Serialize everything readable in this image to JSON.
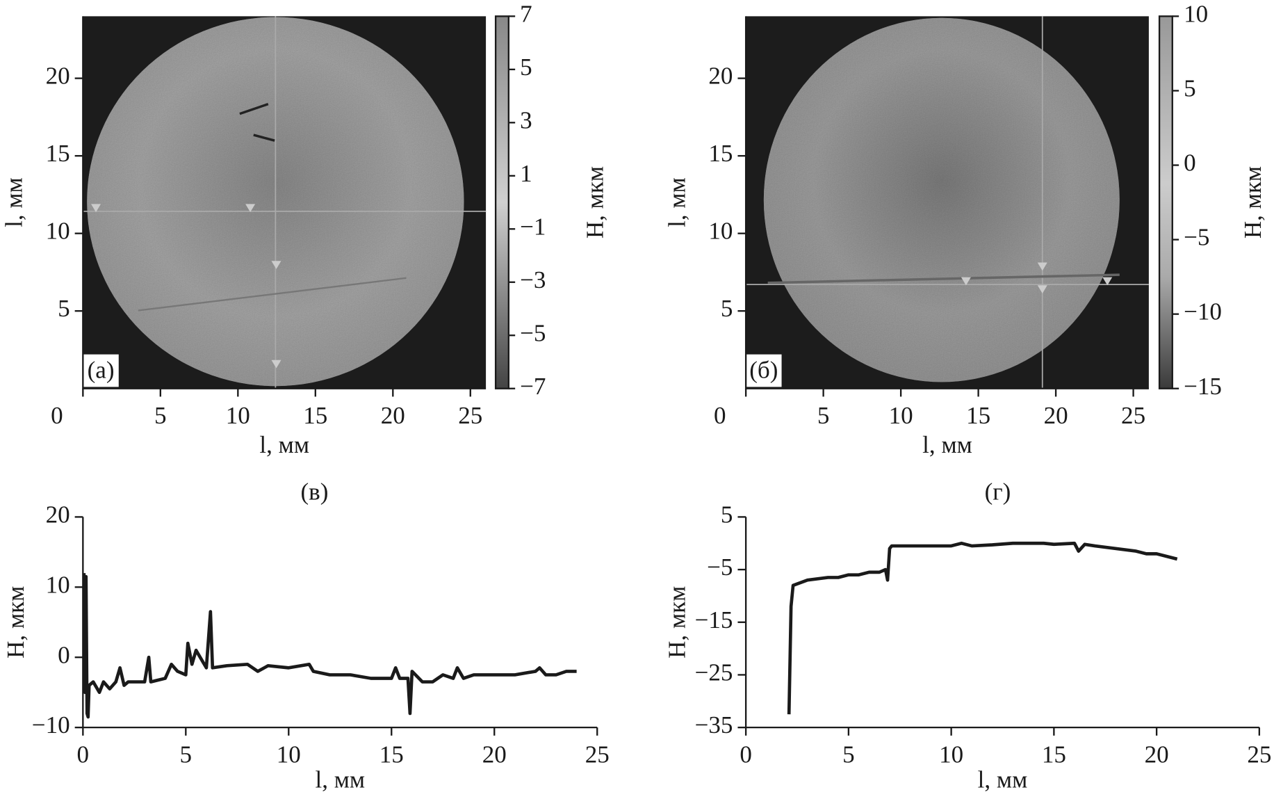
{
  "chart_data": [
    {
      "type": "heatmap",
      "panel_label": "(а)",
      "xlabel": "l, мм",
      "ylabel": "l, мм",
      "xlim": [
        0,
        26
      ],
      "xticks": [
        0,
        5,
        10,
        15,
        20,
        25
      ],
      "ylim": [
        0,
        24
      ],
      "yticks": [
        5,
        10,
        15,
        20
      ],
      "colorbar": {
        "label": "H, мкм",
        "lim": [
          -7,
          7
        ],
        "ticks": [
          7,
          5,
          3,
          1,
          {
            "value": -1,
            "label": "−1"
          },
          {
            "value": -3,
            "label": "−3"
          },
          {
            "value": -5,
            "label": "−5"
          },
          {
            "value": -7,
            "label": "−7"
          }
        ]
      }
    },
    {
      "type": "heatmap",
      "panel_label": "(б)",
      "xlabel": "l, мм",
      "ylabel": "l, мм",
      "xlim": [
        0,
        26
      ],
      "xticks": [
        0,
        5,
        10,
        15,
        20,
        25
      ],
      "ylim": [
        0,
        24
      ],
      "yticks": [
        5,
        10,
        15,
        20
      ],
      "colorbar": {
        "label": "H, мкм",
        "lim": [
          -15,
          10
        ],
        "ticks": [
          10,
          5,
          0,
          {
            "value": -5,
            "label": "−5"
          },
          {
            "value": -10,
            "label": "−10"
          },
          {
            "value": -15,
            "label": "−15"
          }
        ]
      }
    },
    {
      "type": "line",
      "panel_label": "(в)",
      "xlabel": "l, мм",
      "ylabel": "H, мкм",
      "color": "#1a1a1a",
      "xlim": [
        0,
        25
      ],
      "xticks": [
        0,
        5,
        10,
        15,
        20,
        25
      ],
      "ylim": [
        -10,
        20
      ],
      "yticks": [
        {
          "value": -10,
          "label": "−10"
        },
        0,
        10,
        20
      ],
      "x": [
        0.05,
        0.1,
        0.15,
        0.2,
        0.25,
        0.3,
        0.5,
        0.8,
        1.0,
        1.3,
        1.6,
        1.8,
        2.0,
        2.2,
        3.0,
        3.2,
        3.3,
        4.0,
        4.3,
        4.6,
        5.0,
        5.1,
        5.3,
        5.5,
        5.8,
        6.0,
        6.2,
        6.3,
        7,
        8,
        8.5,
        9,
        10,
        11,
        11.2,
        12,
        13,
        14,
        15,
        15.2,
        15.4,
        15.8,
        15.9,
        16,
        16.5,
        17,
        17.5,
        18,
        18.2,
        18.5,
        19,
        20,
        21,
        22,
        22.2,
        22.5,
        23,
        23.5,
        24
      ],
      "values": [
        12,
        -5,
        11.5,
        -8,
        -8.5,
        -4,
        -3.5,
        -5,
        -3.5,
        -4.5,
        -3.5,
        -1.5,
        -4,
        -3.5,
        -3.5,
        0,
        -3.5,
        -3,
        -1,
        -2,
        -2.5,
        2,
        -1,
        1,
        -0.5,
        -1.5,
        6.5,
        -1.5,
        -1.2,
        -1,
        -2,
        -1.2,
        -1.5,
        -1,
        -2,
        -2.5,
        -2.5,
        -3,
        -3,
        -1.5,
        -3,
        -3,
        -8,
        -2,
        -3.5,
        -3.5,
        -2.5,
        -3,
        -1.5,
        -3,
        -2.5,
        -2.5,
        -2.5,
        -2,
        -1.5,
        -2.5,
        -2.5,
        -2,
        -2
      ]
    },
    {
      "type": "line",
      "panel_label": "(г)",
      "xlabel": "l, мм",
      "ylabel": "H, мкм",
      "color": "#1a1a1a",
      "xlim": [
        0,
        25
      ],
      "xticks": [
        0,
        5,
        10,
        15,
        20,
        25
      ],
      "ylim": [
        -35,
        5
      ],
      "yticks": [
        {
          "value": -35,
          "label": "−35"
        },
        {
          "value": -25,
          "label": "−25"
        },
        {
          "value": -15,
          "label": "−15"
        },
        {
          "value": -5,
          "label": "−5"
        },
        5
      ],
      "x": [
        2.1,
        2.2,
        2.3,
        3,
        4,
        4.5,
        5,
        5.5,
        6,
        6.5,
        6.8,
        6.9,
        7,
        7.1,
        8,
        9,
        10,
        10.5,
        11,
        12,
        13,
        14,
        14.5,
        15,
        16,
        16.2,
        16.5,
        17,
        18,
        19,
        19.5,
        20,
        21
      ],
      "values": [
        -32.5,
        -12,
        -8,
        -7,
        -6.5,
        -6.5,
        -6,
        -6,
        -5.5,
        -5.5,
        -5,
        -7,
        -1,
        -0.5,
        -0.5,
        -0.5,
        -0.5,
        0,
        -0.5,
        -0.3,
        0,
        0,
        0,
        -0.2,
        0,
        -1.5,
        -0.2,
        -0.5,
        -1,
        -1.5,
        -2,
        -2,
        -3
      ]
    }
  ]
}
